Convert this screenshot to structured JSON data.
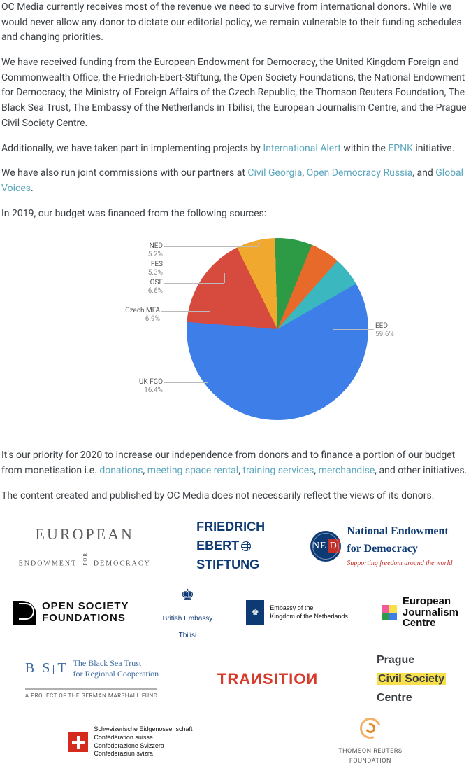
{
  "paragraphs": {
    "p1": "OC Media currently receives most of the revenue we need to survive from international donors. While we would never allow any donor to dictate our editorial policy, we remain vulnerable to their funding schedules and changing priorities.",
    "p2": "We have received funding from the European Endowment for Democracy, the United Kingdom Foreign and Commonwealth Office, the Friedrich-Ebert-Stiftung, the Open Society Foundations, the National Endowment for Democracy, the Ministry of Foreign Affairs of the Czech Republic, the Thomson Reuters Foundation, The Black Sea Trust, The Embassy of the Netherlands in Tbilisi, the European Journalism Centre, and the Prague Civil Society Centre.",
    "p3a": "Additionally, we have taken part in implementing projects by ",
    "p3b": " within the ",
    "p3c": " initiative.",
    "p4a": "We have also run joint commissions with our partners at ",
    "p5": "In 2019, our budget was financed from the following sources:",
    "p6a": "It's our priority for 2020 to increase our independence from donors and to finance a portion of our budget from monetisation i.e. ",
    "p6b": ", and other initiatives.",
    "p7": "The content created and published by OC Media does not necessarily reflect the views of its donors."
  },
  "links": {
    "intl_alert": "International Alert",
    "epnk": "EPNK",
    "civil_georgia": "Civil Georgia",
    "open_democracy": "Open Democracy Russia",
    "global_voices": "Global Voices",
    "donations": "donations",
    "meeting_space": "meeting space rental",
    "training": "training services",
    "merchandise": "merchandise",
    "link_color": "#5aa6bd"
  },
  "separators": {
    "comma": ", ",
    "and": ", and ",
    "period": "."
  },
  "chart": {
    "type": "pie",
    "background_color": "#ffffff",
    "slices": [
      {
        "label": "EED",
        "pct": "59.6%",
        "value": 59.6,
        "color": "#3e7ee8"
      },
      {
        "label": "UK FCO",
        "pct": "16.4%",
        "value": 16.4,
        "color": "#d64b3e"
      },
      {
        "label": "Czech MFA",
        "pct": "6.9%",
        "value": 6.9,
        "color": "#f0a82e"
      },
      {
        "label": "OSF",
        "pct": "6.6%",
        "value": 6.6,
        "color": "#2d9a46"
      },
      {
        "label": "FES",
        "pct": "5.3%",
        "value": 5.3,
        "color": "#e86a2a"
      },
      {
        "label": "NED",
        "pct": "5.2%",
        "value": 5.2,
        "color": "#3ab7bf"
      }
    ],
    "leader_label_color": "#555",
    "leader_pct_color": "#888",
    "leader_line_color": "#bbbbbb",
    "label_fontsize": 10
  },
  "logos": {
    "eed": {
      "line1": "EUROPEAN",
      "line2": "Endowment",
      "line3": "Democracy",
      "joiner": "FOR"
    },
    "fes": {
      "line1": "FRIEDRICH",
      "line2": "EBERT",
      "line3": "STIFTUNG",
      "color": "#0e3a74"
    },
    "ned": {
      "mark": "NE",
      "mark2": "D",
      "line1": "National Endowment",
      "line2": "for Democracy",
      "tagline": "Supporting freedom around the world",
      "title_color": "#0e3a74",
      "tag_color": "#c2302a"
    },
    "osf": {
      "line1": "OPEN SOCIETY",
      "line2": "FOUNDATIONS"
    },
    "uk": {
      "line1": "British Embassy",
      "line2": "Tbilisi"
    },
    "nl": {
      "line1": "Embassy of the",
      "line2": "Kingdom of the Netherlands"
    },
    "ejc": {
      "line1": "European",
      "line2": "Journalism",
      "line3": "Centre",
      "colors": [
        "#f15a9c",
        "#f7e04b",
        "#2d9a46",
        "#3e7ee8"
      ]
    },
    "bst": {
      "letters": "B | S | T",
      "line1": "The Black Sea Trust",
      "line2": "for Regional Cooperation",
      "sub": "A PROJECT OF THE GERMAN MARSHALL FUND",
      "color": "#3c6aa0"
    },
    "transition": {
      "text": "TRAИSITIOИ",
      "color": "#d83a2b"
    },
    "prague": {
      "line1": "Prague",
      "line2": "Civil Society",
      "line3": "Centre"
    },
    "swiss": {
      "line1": "Schweizerische Eidgenossenschaft",
      "line2": "Confédération suisse",
      "line3": "Confederazione Svizzera",
      "line4": "Confederaziun svizra"
    },
    "trf": {
      "line1": "THOMSON REUTERS",
      "line2": "FOUNDATION"
    }
  }
}
